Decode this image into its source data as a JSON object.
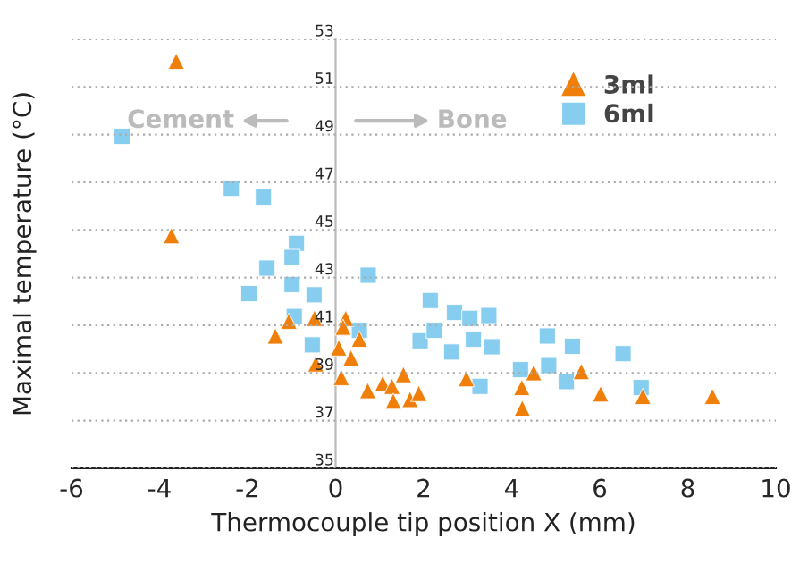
{
  "chart_data": {
    "type": "scatter",
    "xlabel": "Thermocouple tip position X (mm)",
    "ylabel": "Maximal temperature (°C)",
    "annotations": [
      "Cement",
      "Bone"
    ],
    "xlim": [
      -6,
      10
    ],
    "xticks": [
      -6,
      -4,
      -2,
      0,
      2,
      4,
      6,
      8,
      10
    ],
    "ylim": [
      35,
      53
    ],
    "yticks": [
      35,
      37,
      39,
      41,
      43,
      45,
      47,
      49,
      51,
      53
    ],
    "grid": "y",
    "legend": "top right",
    "series": [
      {
        "name": "3ml",
        "color": "#f07f0a",
        "marker": "triangle",
        "x": [
          -3.62,
          -3.73,
          -1.37,
          -1.06,
          -0.48,
          -0.45,
          0.23,
          0.17,
          0.07,
          0.54,
          0.35,
          0.13,
          0.73,
          1.07,
          1.28,
          1.31,
          1.54,
          1.69,
          1.89,
          2.97,
          4.23,
          4.24,
          4.5,
          5.58,
          6.02,
          6.98,
          8.56
        ],
        "values": [
          52.08,
          44.76,
          40.55,
          41.17,
          41.29,
          39.38,
          41.29,
          40.92,
          40.05,
          40.42,
          39.63,
          38.81,
          38.26,
          38.56,
          38.44,
          37.82,
          38.93,
          37.89,
          38.14,
          38.76,
          38.39,
          37.52,
          39.01,
          39.06,
          38.12,
          38.02,
          38.02
        ]
      },
      {
        "name": "6ml",
        "color": "#87cdf0",
        "marker": "square",
        "x": [
          -4.85,
          -2.37,
          -1.64,
          -0.89,
          -0.99,
          -1.56,
          -0.99,
          -1.97,
          -0.49,
          -0.94,
          -0.53,
          0.74,
          0.54,
          1.92,
          2.15,
          2.24,
          2.7,
          3.05,
          3.48,
          2.64,
          3.13,
          3.55,
          3.28,
          4.2,
          4.81,
          4.84,
          5.38,
          5.24,
          6.53,
          6.94
        ],
        "values": [
          48.93,
          46.75,
          46.38,
          44.44,
          43.85,
          43.4,
          42.71,
          42.33,
          42.28,
          41.37,
          40.18,
          43.1,
          40.79,
          40.35,
          42.04,
          40.79,
          41.54,
          41.29,
          41.41,
          39.88,
          40.42,
          40.1,
          38.44,
          39.14,
          40.55,
          39.31,
          40.12,
          38.64,
          39.81,
          38.39
        ]
      }
    ]
  }
}
